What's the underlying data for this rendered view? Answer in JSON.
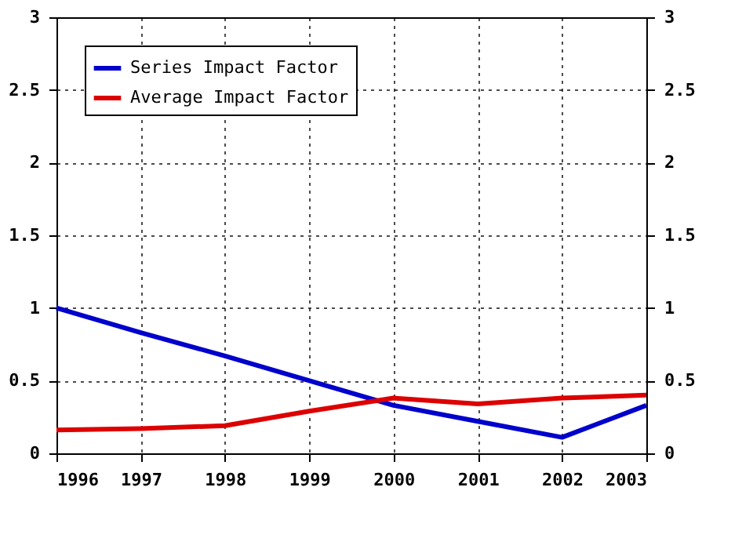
{
  "chart_data": {
    "type": "line",
    "x": [
      1996,
      1997,
      1998,
      1999,
      2000,
      2001,
      2002,
      2003
    ],
    "series": [
      {
        "name": "Series Impact Factor",
        "color": "#0000cc",
        "values": [
          1.0,
          0.83,
          0.67,
          0.5,
          0.33,
          0.22,
          0.11,
          0.33
        ]
      },
      {
        "name": "Average Impact Factor",
        "color": "#dd0000",
        "values": [
          0.16,
          0.17,
          0.19,
          0.29,
          0.38,
          0.34,
          0.38,
          0.4
        ]
      }
    ],
    "xlim": [
      1996,
      2003
    ],
    "xticks": [
      1996,
      1997,
      1998,
      1999,
      2000,
      2001,
      2002,
      2003
    ],
    "ylim": [
      0,
      3
    ],
    "yticks": [
      0,
      0.5,
      1,
      1.5,
      2,
      2.5,
      3
    ],
    "y2lim": [
      0,
      3
    ],
    "y2ticks": [
      0,
      0.5,
      1,
      1.5,
      2,
      2.5,
      3
    ],
    "grid": true,
    "legend": "top left",
    "marker": "none",
    "line_style": "solid"
  }
}
